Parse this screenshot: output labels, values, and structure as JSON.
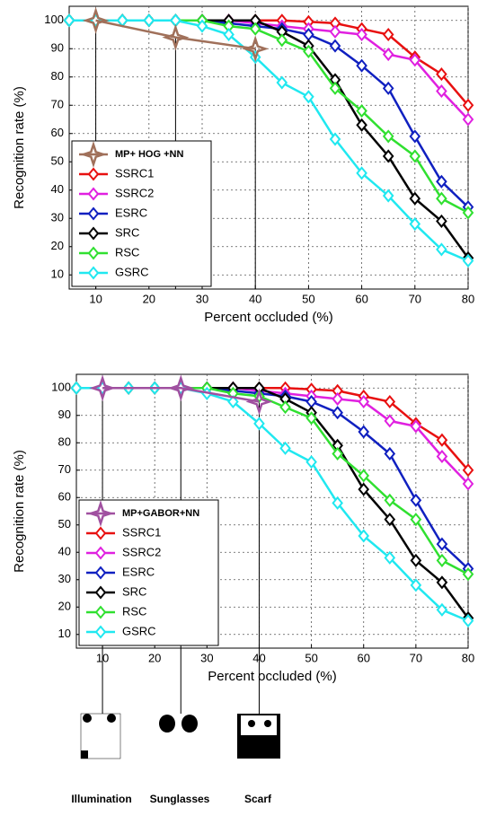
{
  "chart_data": [
    {
      "type": "line",
      "xlabel": "Percent occluded (%)",
      "ylabel": "Recognition rate (%)",
      "xlim": [
        5,
        80
      ],
      "ylim": [
        5,
        105
      ],
      "xticks": [
        10,
        20,
        30,
        40,
        50,
        60,
        70,
        80
      ],
      "yticks": [
        10,
        20,
        30,
        40,
        50,
        60,
        70,
        80,
        90,
        100
      ],
      "grid": true,
      "legend": "lower left",
      "series": [
        {
          "name": "MP+ HOG +NN",
          "color": "#a0705a",
          "marker": "star",
          "x": [
            10,
            25,
            40
          ],
          "values": [
            100,
            94,
            90
          ]
        },
        {
          "name": "SSRC1",
          "color": "#e81010",
          "marker": "diamond",
          "x": [
            5,
            10,
            15,
            20,
            25,
            30,
            35,
            40,
            45,
            50,
            55,
            60,
            65,
            70,
            75,
            80
          ],
          "values": [
            100,
            100,
            100,
            100,
            100,
            100,
            100,
            100,
            100,
            99.5,
            99,
            97,
            95,
            87,
            81,
            70
          ]
        },
        {
          "name": "SSRC2",
          "color": "#e020e0",
          "marker": "diamond",
          "x": [
            5,
            10,
            15,
            20,
            25,
            30,
            35,
            40,
            45,
            50,
            55,
            60,
            65,
            70,
            75,
            80
          ],
          "values": [
            100,
            100,
            100,
            100,
            100,
            100,
            100,
            99,
            98,
            97,
            96,
            95,
            88,
            86,
            75,
            65
          ]
        },
        {
          "name": "ESRC",
          "color": "#1020c0",
          "marker": "diamond",
          "x": [
            5,
            10,
            15,
            20,
            25,
            30,
            35,
            40,
            45,
            50,
            55,
            60,
            65,
            70,
            75,
            80
          ],
          "values": [
            100,
            100,
            100,
            100,
            100,
            100,
            99,
            98,
            97,
            95,
            91,
            84,
            76,
            59,
            43,
            34
          ]
        },
        {
          "name": "SRC",
          "color": "#000000",
          "marker": "diamond",
          "x": [
            5,
            10,
            15,
            20,
            25,
            30,
            35,
            40,
            45,
            50,
            55,
            60,
            65,
            70,
            75,
            80
          ],
          "values": [
            100,
            100,
            100,
            100,
            100,
            100,
            100,
            100,
            96,
            91,
            79,
            63,
            52,
            37,
            29,
            16
          ]
        },
        {
          "name": "RSC",
          "color": "#30e030",
          "marker": "diamond",
          "x": [
            5,
            10,
            15,
            20,
            25,
            30,
            35,
            40,
            45,
            50,
            55,
            60,
            65,
            70,
            75,
            80
          ],
          "values": [
            100,
            100,
            100,
            100,
            100,
            100,
            98,
            97,
            93,
            89,
            76,
            68,
            59,
            52,
            37,
            32
          ]
        },
        {
          "name": "GSRC",
          "color": "#20e8f0",
          "marker": "diamond",
          "x": [
            5,
            10,
            15,
            20,
            25,
            30,
            35,
            40,
            45,
            50,
            55,
            60,
            65,
            70,
            75,
            80
          ],
          "values": [
            100,
            100,
            100,
            100,
            100,
            98,
            95,
            87,
            78,
            73,
            58,
            46,
            38,
            28,
            19,
            15
          ]
        }
      ]
    },
    {
      "type": "line",
      "xlabel": "Percent occluded (%)",
      "ylabel": "Recognition rate (%)",
      "xlim": [
        5,
        80
      ],
      "ylim": [
        5,
        105
      ],
      "xticks": [
        10,
        20,
        30,
        40,
        50,
        60,
        70,
        80
      ],
      "yticks": [
        10,
        20,
        30,
        40,
        50,
        60,
        70,
        80,
        90,
        100
      ],
      "grid": true,
      "legend": "lower left",
      "series": [
        {
          "name": "MP+GABOR+NN",
          "color": "#a050a0",
          "marker": "star",
          "x": [
            10,
            25,
            40
          ],
          "values": [
            100,
            100,
            95
          ]
        },
        {
          "name": "SSRC1",
          "color": "#e81010",
          "marker": "diamond",
          "x": [
            5,
            10,
            15,
            20,
            25,
            30,
            35,
            40,
            45,
            50,
            55,
            60,
            65,
            70,
            75,
            80
          ],
          "values": [
            100,
            100,
            100,
            100,
            100,
            100,
            100,
            100,
            100,
            99.5,
            99,
            97,
            95,
            87,
            81,
            70
          ]
        },
        {
          "name": "SSRC2",
          "color": "#e020e0",
          "marker": "diamond",
          "x": [
            5,
            10,
            15,
            20,
            25,
            30,
            35,
            40,
            45,
            50,
            55,
            60,
            65,
            70,
            75,
            80
          ],
          "values": [
            100,
            100,
            100,
            100,
            100,
            100,
            100,
            99,
            98,
            97,
            96,
            95,
            88,
            86,
            75,
            65
          ]
        },
        {
          "name": "ESRC",
          "color": "#1020c0",
          "marker": "diamond",
          "x": [
            5,
            10,
            15,
            20,
            25,
            30,
            35,
            40,
            45,
            50,
            55,
            60,
            65,
            70,
            75,
            80
          ],
          "values": [
            100,
            100,
            100,
            100,
            100,
            100,
            99,
            98,
            97,
            95,
            91,
            84,
            76,
            59,
            43,
            34
          ]
        },
        {
          "name": "SRC",
          "color": "#000000",
          "marker": "diamond",
          "x": [
            5,
            10,
            15,
            20,
            25,
            30,
            35,
            40,
            45,
            50,
            55,
            60,
            65,
            70,
            75,
            80
          ],
          "values": [
            100,
            100,
            100,
            100,
            100,
            100,
            100,
            100,
            96,
            91,
            79,
            63,
            52,
            37,
            29,
            16
          ]
        },
        {
          "name": "RSC",
          "color": "#30e030",
          "marker": "diamond",
          "x": [
            5,
            10,
            15,
            20,
            25,
            30,
            35,
            40,
            45,
            50,
            55,
            60,
            65,
            70,
            75,
            80
          ],
          "values": [
            100,
            100,
            100,
            100,
            100,
            100,
            98,
            97,
            93,
            89,
            76,
            68,
            59,
            52,
            37,
            32
          ]
        },
        {
          "name": "GSRC",
          "color": "#20e8f0",
          "marker": "diamond",
          "x": [
            5,
            10,
            15,
            20,
            25,
            30,
            35,
            40,
            45,
            50,
            55,
            60,
            65,
            70,
            75,
            80
          ],
          "values": [
            100,
            100,
            100,
            100,
            100,
            98,
            95,
            87,
            78,
            73,
            58,
            46,
            38,
            28,
            19,
            15
          ]
        }
      ]
    }
  ],
  "images": [
    {
      "label": "Illumination"
    },
    {
      "label": "Sunglasses"
    },
    {
      "label": "Scarf"
    }
  ]
}
